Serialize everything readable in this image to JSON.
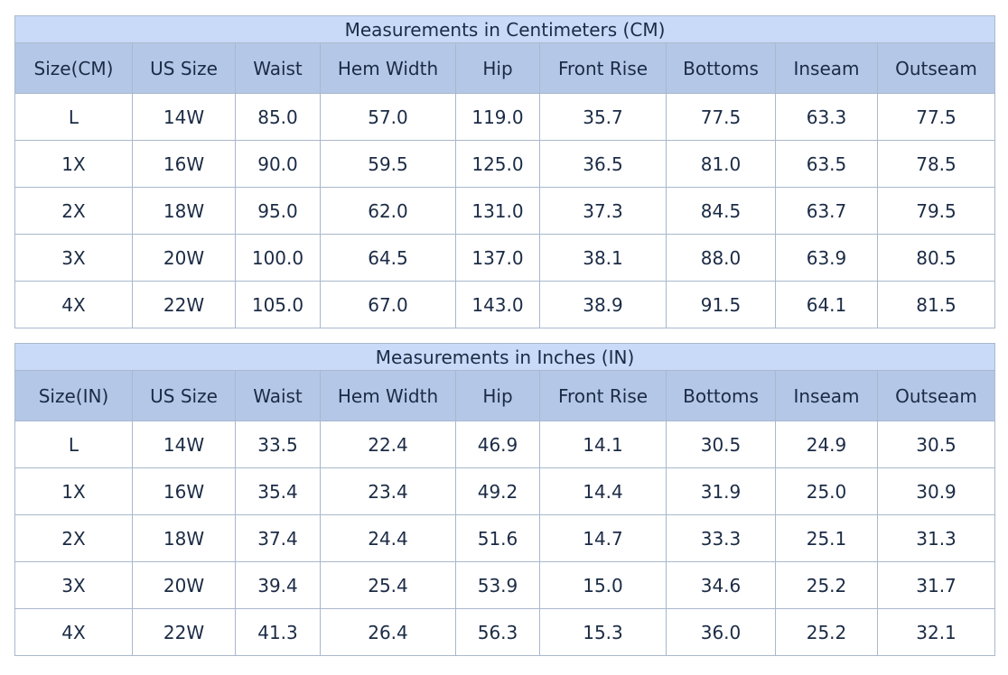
{
  "tables": [
    {
      "title": "Measurements in Centimeters (CM)",
      "headers": [
        "Size(CM)",
        "US Size",
        "Waist",
        "Hem Width",
        "Hip",
        "Front Rise",
        "Bottoms",
        "Inseam",
        "Outseam"
      ],
      "rows": [
        [
          "L",
          "14W",
          "85.0",
          "57.0",
          "119.0",
          "35.7",
          "77.5",
          "63.3",
          "77.5"
        ],
        [
          "1X",
          "16W",
          "90.0",
          "59.5",
          "125.0",
          "36.5",
          "81.0",
          "63.5",
          "78.5"
        ],
        [
          "2X",
          "18W",
          "95.0",
          "62.0",
          "131.0",
          "37.3",
          "84.5",
          "63.7",
          "79.5"
        ],
        [
          "3X",
          "20W",
          "100.0",
          "64.5",
          "137.0",
          "38.1",
          "88.0",
          "63.9",
          "80.5"
        ],
        [
          "4X",
          "22W",
          "105.0",
          "67.0",
          "143.0",
          "38.9",
          "91.5",
          "64.1",
          "81.5"
        ]
      ]
    },
    {
      "title": "Measurements in Inches (IN)",
      "headers": [
        "Size(IN)",
        "US Size",
        "Waist",
        "Hem Width",
        "Hip",
        "Front Rise",
        "Bottoms",
        "Inseam",
        "Outseam"
      ],
      "rows": [
        [
          "L",
          "14W",
          "33.5",
          "22.4",
          "46.9",
          "14.1",
          "30.5",
          "24.9",
          "30.5"
        ],
        [
          "1X",
          "16W",
          "35.4",
          "23.4",
          "49.2",
          "14.4",
          "31.9",
          "25.0",
          "30.9"
        ],
        [
          "2X",
          "18W",
          "37.4",
          "24.4",
          "51.6",
          "14.7",
          "33.3",
          "25.1",
          "31.3"
        ],
        [
          "3X",
          "20W",
          "39.4",
          "25.4",
          "53.9",
          "15.0",
          "34.6",
          "25.2",
          "31.7"
        ],
        [
          "4X",
          "22W",
          "41.3",
          "26.4",
          "56.3",
          "15.3",
          "36.0",
          "25.2",
          "32.1"
        ]
      ]
    }
  ]
}
